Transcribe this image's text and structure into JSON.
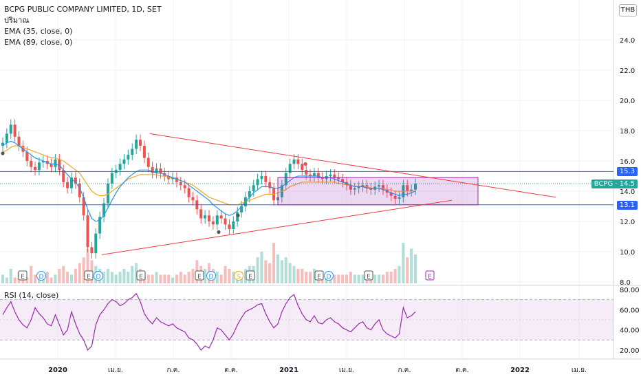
{
  "header": {
    "title": "BCPG PUBLIC COMPANY LIMITED, 1D, SET",
    "indicators": [
      "ปริมาณ",
      "EMA (35, close, 0)",
      "EMA (89, close, 0)"
    ],
    "currency": "THB"
  },
  "rsi": {
    "label": "RSI (14, close)",
    "ticks": [
      "80.00",
      "60.00",
      "40.00",
      "20.00"
    ]
  },
  "price_tags": {
    "upper": "15.3",
    "ticker": "BCPG · 14.5",
    "lower": "13.1"
  },
  "colors": {
    "up": "#26a69a",
    "down": "#ef5350",
    "ema35": "#2196f3",
    "ema89": "#f5a623",
    "trend": "#f23645",
    "hline": "#2962ff",
    "box": "#9c27b0",
    "rsi": "#9c27b0"
  },
  "events": [
    {
      "label": "E",
      "kind": "earnings"
    },
    {
      "label": "D",
      "kind": "dividend"
    },
    {
      "label": "E",
      "kind": "earnings"
    },
    {
      "label": "D",
      "kind": "dividend"
    },
    {
      "label": "E",
      "kind": "earnings"
    },
    {
      "label": "E",
      "kind": "earnings"
    },
    {
      "label": "D",
      "kind": "dividend"
    },
    {
      "label": "S",
      "kind": "split"
    },
    {
      "label": "E",
      "kind": "earnings"
    },
    {
      "label": "E",
      "kind": "earnings"
    },
    {
      "label": "D",
      "kind": "dividend"
    },
    {
      "label": "E",
      "kind": "earnings"
    },
    {
      "label": "E",
      "kind": "earnings"
    }
  ],
  "chart_data": [
    {
      "type": "line",
      "title": "BCPG PUBLIC COMPANY LIMITED, 1D, SET",
      "xlabel": "",
      "ylabel": "",
      "x_ticks": [
        "2020",
        "เม.ย.",
        "ก.ค.",
        "ต.ค.",
        "2021",
        "เม.ย.",
        "ก.ค.",
        "ต.ค.",
        "2022",
        "เม.ย."
      ],
      "y_ticks": [
        "24.0",
        "22.0",
        "20.0",
        "18.0",
        "16.0",
        "14.0",
        "12.0",
        "10.0",
        "8.0"
      ],
      "ylim": [
        8,
        25
      ],
      "grid": true,
      "series": [
        {
          "name": "BCPG",
          "values": [
            17.2,
            17.8,
            18.4,
            17.6,
            17.0,
            16.6,
            16.0,
            15.6,
            15.4,
            15.9,
            16.0,
            15.8,
            15.6,
            16.1,
            15.4,
            14.6,
            14.2,
            14.9,
            14.5,
            13.6,
            12.4,
            10.3,
            9.9,
            11.2,
            12.3,
            13.2,
            14.5,
            15.2,
            15.4,
            15.8,
            16.1,
            16.4,
            16.8,
            17.4,
            17.0,
            16.2,
            15.6,
            15.2,
            15.5,
            15.2,
            15.0,
            14.8,
            14.9,
            14.6,
            14.4,
            14.2,
            13.6,
            13.4,
            12.8,
            12.2,
            12.4,
            12.0,
            11.8,
            12.4,
            12.2,
            11.8,
            11.5,
            12.0,
            12.6,
            13.0,
            13.6,
            14.0,
            14.4,
            14.8,
            15.0,
            14.6,
            14.2,
            13.4,
            13.6,
            14.4,
            15.2,
            15.8,
            16.1,
            15.8,
            15.4,
            15.1,
            15.0,
            15.2,
            14.9,
            14.8,
            15.0,
            15.1,
            14.9,
            14.8,
            14.6,
            14.4,
            14.1,
            14.2,
            14.3,
            14.4,
            14.2,
            14.1,
            14.3,
            14.4,
            14.1,
            13.9,
            13.7,
            13.5,
            13.6,
            14.4,
            14.0,
            14.1,
            14.5
          ]
        },
        {
          "name": "EMA (35, close, 0)",
          "values": [
            17.0,
            17.2,
            17.3,
            17.2,
            17.0,
            16.8,
            16.6,
            16.4,
            16.2,
            16.1,
            16.0,
            15.9,
            15.8,
            15.8,
            15.7,
            15.4,
            15.1,
            14.8,
            14.6,
            14.2,
            13.6,
            12.8,
            12.2,
            12.0,
            12.1,
            12.4,
            12.9,
            13.4,
            13.9,
            14.3,
            14.6,
            14.9,
            15.1,
            15.3,
            15.4,
            15.4,
            15.4,
            15.3,
            15.2,
            15.2,
            15.1,
            15.0,
            14.9,
            14.8,
            14.7,
            14.6,
            14.4,
            14.2,
            14.0,
            13.8,
            13.6,
            13.4,
            13.1,
            12.9,
            12.7,
            12.5,
            12.4,
            12.5,
            12.7,
            13.0,
            13.3,
            13.6,
            13.9,
            14.1,
            14.3,
            14.3,
            14.3,
            14.2,
            14.2,
            14.3,
            14.5,
            14.7,
            14.9,
            15.0,
            15.0,
            15.0,
            15.0,
            15.0,
            15.0,
            14.9,
            14.9,
            14.9,
            14.8,
            14.7,
            14.6,
            14.5,
            14.4,
            14.3,
            14.3,
            14.3,
            14.2,
            14.2,
            14.2,
            14.2,
            14.1,
            14.0,
            13.9,
            13.8,
            13.7,
            13.8,
            13.8,
            13.9,
            14.0
          ]
        },
        {
          "name": "EMA (89, close, 0)",
          "values": [
            16.6,
            16.7,
            16.9,
            17.0,
            17.0,
            16.9,
            16.8,
            16.7,
            16.6,
            16.5,
            16.4,
            16.3,
            16.2,
            16.2,
            16.1,
            16.0,
            15.8,
            15.6,
            15.4,
            15.2,
            14.8,
            14.4,
            14.0,
            13.8,
            13.7,
            13.7,
            13.8,
            14.0,
            14.2,
            14.4,
            14.6,
            14.8,
            14.9,
            15.0,
            15.1,
            15.1,
            15.1,
            15.1,
            15.1,
            15.0,
            15.0,
            14.9,
            14.9,
            14.8,
            14.7,
            14.6,
            14.5,
            14.4,
            14.2,
            14.0,
            13.8,
            13.6,
            13.5,
            13.4,
            13.3,
            13.2,
            13.1,
            13.1,
            13.1,
            13.2,
            13.3,
            13.4,
            13.5,
            13.6,
            13.7,
            13.8,
            13.8,
            13.8,
            13.9,
            14.0,
            14.1,
            14.3,
            14.4,
            14.5,
            14.6,
            14.6,
            14.6,
            14.6,
            14.6,
            14.6,
            14.6,
            14.6,
            14.6,
            14.5,
            14.5,
            14.4,
            14.4,
            14.3,
            14.3,
            14.3,
            14.3,
            14.2,
            14.2,
            14.2,
            14.2,
            14.1,
            14.1,
            14.0,
            14.0,
            14.0,
            14.0,
            14.0,
            14.0
          ]
        }
      ]
    },
    {
      "type": "line",
      "title": "RSI (14, close)",
      "y_ticks": [
        "80.00",
        "60.00",
        "40.00",
        "20.00"
      ],
      "ylim": [
        10,
        85
      ],
      "bands": [
        30,
        70
      ],
      "series": [
        {
          "name": "RSI",
          "values": [
            55,
            62,
            68,
            58,
            50,
            45,
            42,
            50,
            62,
            56,
            52,
            46,
            44,
            55,
            45,
            35,
            40,
            58,
            46,
            36,
            30,
            20,
            24,
            45,
            55,
            60,
            66,
            70,
            68,
            64,
            66,
            70,
            72,
            76,
            68,
            56,
            50,
            46,
            52,
            48,
            46,
            44,
            46,
            42,
            40,
            38,
            32,
            30,
            26,
            20,
            24,
            22,
            30,
            42,
            40,
            35,
            30,
            36,
            45,
            52,
            58,
            60,
            62,
            65,
            66,
            56,
            48,
            42,
            46,
            58,
            66,
            72,
            75,
            64,
            56,
            50,
            48,
            54,
            47,
            46,
            50,
            52,
            48,
            46,
            42,
            40,
            38,
            42,
            46,
            48,
            42,
            40,
            46,
            50,
            40,
            36,
            34,
            32,
            36,
            62,
            52,
            54,
            58
          ]
        }
      ]
    }
  ]
}
